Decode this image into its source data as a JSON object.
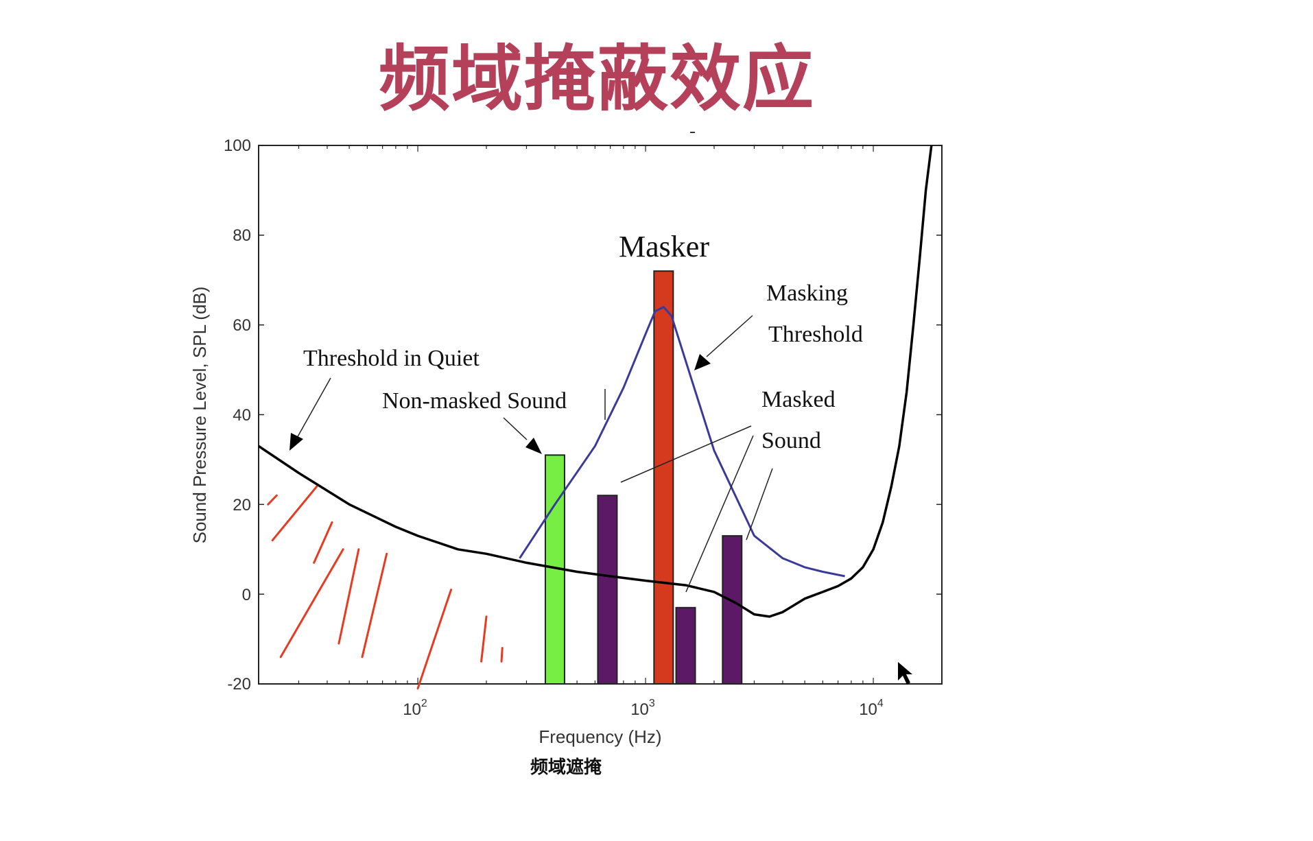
{
  "slide": {
    "title": "频域掩蔽效应",
    "title_color": "#B4405A"
  },
  "chart_data": {
    "type": "line",
    "xscale": "log",
    "xlim": [
      20,
      20000
    ],
    "ylim": [
      -20,
      100
    ],
    "xlabel": "Frequency (Hz)",
    "ylabel": "Sound Pressure Level, SPL (dB)",
    "caption": "频域遮掩",
    "xticks": [
      {
        "value": 100,
        "base": "10",
        "exp": "2"
      },
      {
        "value": 1000,
        "base": "10",
        "exp": "3"
      },
      {
        "value": 10000,
        "base": "10",
        "exp": "4"
      }
    ],
    "yticks": [
      "100",
      "80",
      "60",
      "40",
      "20",
      "0",
      "-20"
    ],
    "series": [
      {
        "color": "#000000",
        "x": [
          20,
          30,
          50,
          80,
          100,
          150,
          200,
          300,
          500,
          700,
          1000,
          1500,
          2000,
          2500,
          3000,
          3500,
          4000,
          5000,
          6000,
          7000,
          8000,
          9000,
          10000,
          11000,
          12000,
          13000,
          14000,
          15000,
          16000,
          17000,
          18000
        ],
        "y": [
          33,
          27,
          20,
          15,
          13,
          10,
          9,
          7,
          5,
          4,
          3,
          2,
          0.5,
          -2,
          -4.5,
          -5,
          -4,
          -1,
          0.5,
          1.8,
          3.5,
          6,
          10,
          16,
          24,
          33,
          45,
          60,
          75,
          90,
          100
        ]
      },
      {
        "color": "#3A3A9A",
        "x": [
          280,
          400,
          600,
          800,
          1000,
          1100,
          1200,
          1300,
          1500,
          2000,
          3000,
          4000,
          5000,
          6000,
          7500
        ],
        "y": [
          8,
          20,
          33,
          46,
          58,
          63,
          64,
          62,
          52,
          32,
          13,
          8,
          6,
          5,
          4
        ]
      }
    ],
    "bars": [
      {
        "label": "Non-masked Sound",
        "x": 400,
        "value": 31,
        "color": "#77EE44"
      },
      {
        "label": "Masked Sound",
        "x": 680,
        "value": 22,
        "color": "#5C1A66"
      },
      {
        "label": "Masker",
        "x": 1200,
        "value": 72,
        "color": "#D63A1E"
      },
      {
        "label": "Masked Sound",
        "x": 1500,
        "value": -3,
        "color": "#5C1A66"
      },
      {
        "label": "Masked Sound",
        "x": 2400,
        "value": 13,
        "color": "#5C1A66"
      }
    ],
    "annotations": {
      "masker": "Masker",
      "masking_threshold_1": "Masking",
      "masking_threshold_2": "Threshold",
      "threshold_quiet": "Threshold in Quiet",
      "non_masked": "Non-masked Sound",
      "masked_1": "Masked",
      "masked_2": "Sound"
    },
    "hatch_color": "#E83A20",
    "grid": false
  }
}
